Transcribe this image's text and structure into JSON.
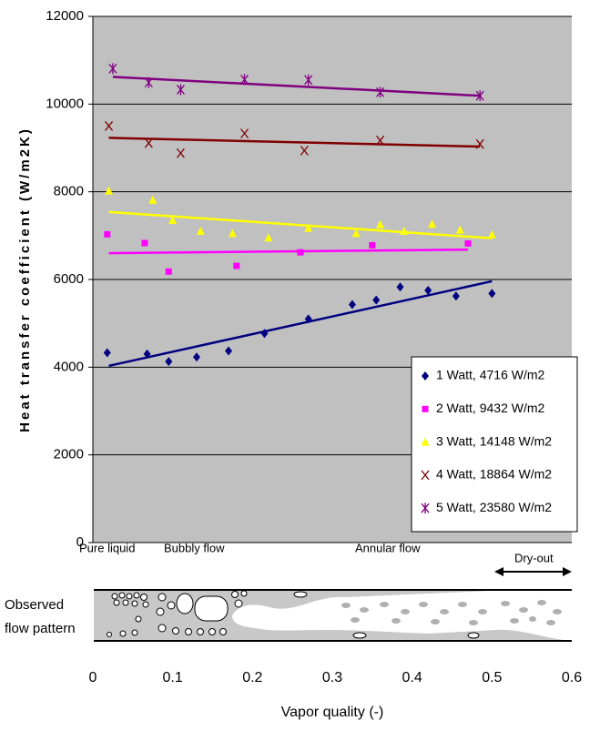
{
  "chart_data": {
    "type": "scatter",
    "y_label": "Heat transfer coefficient (W/m2K)",
    "x_label": "Vapor quality (-)",
    "xlim": [
      0,
      0.6
    ],
    "xticks": [
      0,
      0.1,
      0.2,
      0.3,
      0.4,
      0.5,
      0.6
    ],
    "ylim": [
      0,
      12000
    ],
    "yticks": [
      0,
      2000,
      4000,
      6000,
      8000,
      10000,
      12000
    ],
    "grid": true,
    "legend": "bottom-right",
    "series": [
      {
        "name": "1 Watt, 4716 W/m2",
        "color": "#000080",
        "marker": "diamond",
        "x": [
          0.018,
          0.068,
          0.095,
          0.13,
          0.17,
          0.215,
          0.27,
          0.325,
          0.355,
          0.385,
          0.42,
          0.455,
          0.5
        ],
        "values": [
          4330,
          4300,
          4130,
          4230,
          4370,
          4770,
          5100,
          5430,
          5530,
          5830,
          5750,
          5620,
          5680
        ],
        "trend_x": [
          0.02,
          0.5
        ],
        "trend": [
          4030,
          5960
        ]
      },
      {
        "name": "2 Watt, 9432 W/m2",
        "color": "#ff00ff",
        "marker": "square",
        "x": [
          0.018,
          0.065,
          0.095,
          0.18,
          0.26,
          0.35,
          0.47
        ],
        "values": [
          7030,
          6830,
          6180,
          6310,
          6620,
          6780,
          6820
        ],
        "trend_x": [
          0.02,
          0.47
        ],
        "trend": [
          6600,
          6680
        ]
      },
      {
        "name": "3 Watt, 14148 W/m2",
        "color": "#ffff00",
        "marker": "triangle",
        "x": [
          0.02,
          0.075,
          0.1,
          0.135,
          0.175,
          0.22,
          0.27,
          0.33,
          0.36,
          0.39,
          0.425,
          0.46,
          0.5
        ],
        "values": [
          8020,
          7810,
          7350,
          7100,
          7050,
          6950,
          7170,
          7050,
          7250,
          7100,
          7260,
          7130,
          7020
        ],
        "trend_x": [
          0.02,
          0.5
        ],
        "trend": [
          7540,
          6940
        ]
      },
      {
        "name": "4 Watt, 18864 W/m2",
        "color": "#800000",
        "marker": "x",
        "x": [
          0.02,
          0.07,
          0.11,
          0.19,
          0.265,
          0.36,
          0.485
        ],
        "values": [
          9500,
          9110,
          8880,
          9330,
          8940,
          9170,
          9090
        ],
        "trend_x": [
          0.02,
          0.485
        ],
        "trend": [
          9230,
          9030
        ]
      },
      {
        "name": "5 Watt, 23580 W/m2",
        "color": "#800080",
        "marker": "star",
        "x": [
          0.025,
          0.07,
          0.11,
          0.19,
          0.27,
          0.36,
          0.485
        ],
        "values": [
          10810,
          10490,
          10330,
          10560,
          10550,
          10270,
          10190
        ],
        "trend_x": [
          0.025,
          0.485
        ],
        "trend": [
          10620,
          10190
        ]
      }
    ],
    "flow_pattern": {
      "label_lines": [
        "Observed",
        "flow pattern"
      ],
      "regimes": [
        "Pure liquid",
        "Bubbly flow",
        "Annular flow",
        "Dry-out"
      ]
    }
  }
}
